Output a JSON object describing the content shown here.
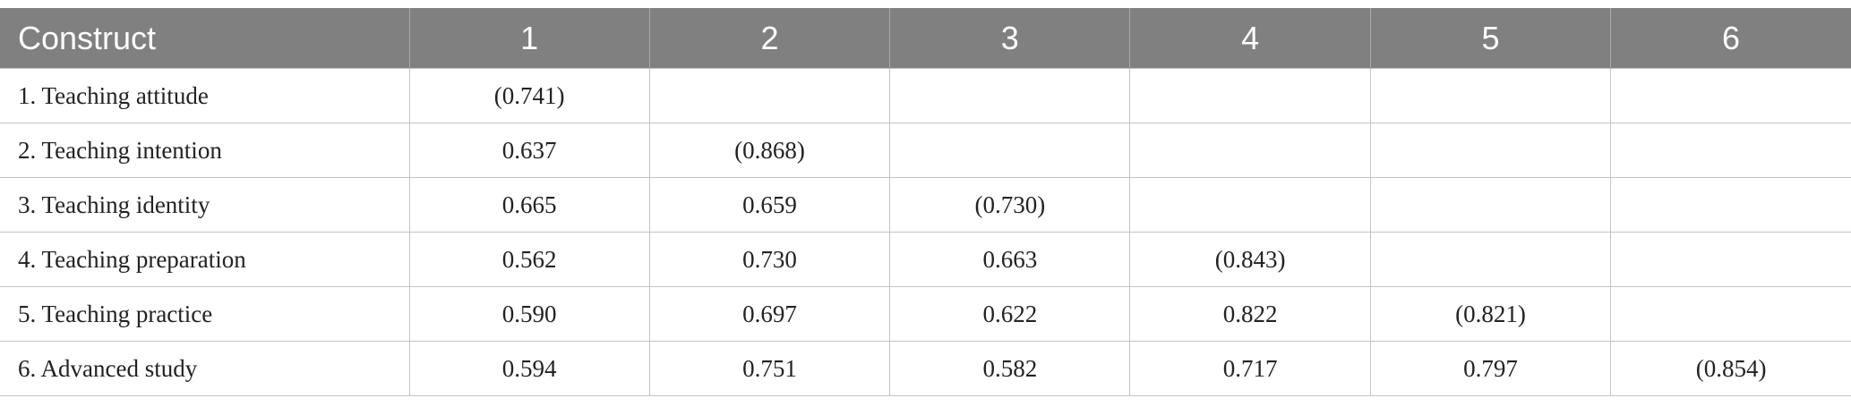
{
  "table": {
    "header": [
      "Construct",
      "1",
      "2",
      "3",
      "4",
      "5",
      "6"
    ],
    "rows": [
      {
        "label": "1.  Teaching attitude",
        "cells": [
          "(0.741)"
        ]
      },
      {
        "label": "2.  Teaching intention",
        "cells": [
          "0.637",
          "(0.868)"
        ]
      },
      {
        "label": "3.  Teaching identity",
        "cells": [
          "0.665",
          "0.659",
          "(0.730)"
        ]
      },
      {
        "label": "4.  Teaching preparation",
        "cells": [
          "0.562",
          "0.730",
          "0.663",
          "(0.843)"
        ]
      },
      {
        "label": "5.  Teaching practice",
        "cells": [
          "0.590",
          "0.697",
          "0.622",
          "0.822",
          "(0.821)"
        ]
      },
      {
        "label": "6.  Advanced study",
        "cells": [
          "0.594",
          "0.751",
          "0.582",
          "0.717",
          "0.797",
          "(0.854)"
        ]
      }
    ]
  }
}
